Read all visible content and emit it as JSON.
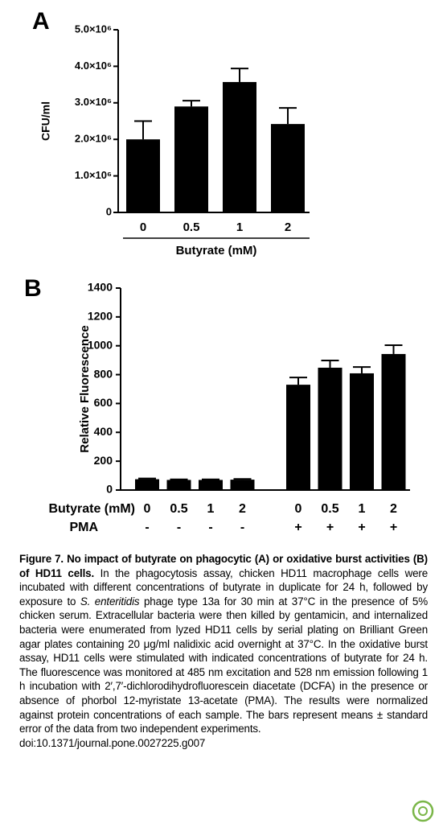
{
  "chart_data": [
    {
      "type": "bar",
      "panel": "A",
      "ylabel": "CFU/ml",
      "xlabel": "Butyrate (mM)",
      "categories": [
        "0",
        "0.5",
        "1",
        "2"
      ],
      "values": [
        2000000,
        2900000,
        3570000,
        2420000
      ],
      "errors": [
        500000,
        160000,
        370000,
        440000
      ],
      "color": "#000000",
      "ylim": [
        0,
        5000000
      ],
      "yticks": [
        0,
        {
          "value": 1000000,
          "label": "1.0×10⁶"
        },
        {
          "value": 2000000,
          "label": "2.0×10⁶"
        },
        {
          "value": 3000000,
          "label": "3.0×10⁶"
        },
        {
          "value": 4000000,
          "label": "4.0×10⁶"
        },
        {
          "value": 5000000,
          "label": "5.0×10⁶"
        }
      ]
    },
    {
      "type": "bar",
      "panel": "B",
      "ylabel": "Relative Fluorescence",
      "row_labels": [
        "Butyrate (mM)",
        "PMA"
      ],
      "categories": [
        "0",
        "0.5",
        "1",
        "2",
        "0",
        "0.5",
        "1",
        "2"
      ],
      "pma": [
        "-",
        "-",
        "-",
        "-",
        "+",
        "+",
        "+",
        "+"
      ],
      "values": [
        75,
        70,
        70,
        72,
        730,
        848,
        809,
        943
      ],
      "errors": [
        5,
        4,
        4,
        5,
        50,
        50,
        44,
        61
      ],
      "color": "#000000",
      "ylim": [
        0,
        1400
      ],
      "yticks": [
        0,
        200,
        400,
        600,
        800,
        1000,
        1200,
        1400
      ]
    }
  ],
  "caption": {
    "title": "Figure 7. No impact of butyrate on phagocytic (A) or oxidative burst activities (B) of HD11 cells.",
    "body": [
      "In the phagocytosis assay, chicken HD11 macrophage cells were incubated with different concentrations of butyrate in duplicate for 24 h, followed by exposure to ",
      "S. enteritidis",
      " phage type 13a for 30 min at 37°C in the presence of 5% chicken serum. Extracellular bacteria were then killed by gentamicin, and internalized bacteria were enumerated from lyzed HD11 cells by serial plating on Brilliant Green agar plates containing 20 μg/ml nalidixic acid overnight at 37°C. In the oxidative burst assay, HD11 cells were stimulated with indicated concentrations of butyrate for 24 h. The fluorescence was monitored at 485 nm excitation and 528 nm emission following 1 h incubation with 2′,7′-dichlorodihydrofluorescein diacetate (DCFA) in the presence or absence of phorbol 12-myristate 13-acetate (PMA). The results were normalized against protein concentrations of each sample. The bars represent means ± standard error of the data from two independent experiments."
    ],
    "doi": "doi:10.1371/journal.pone.0027225.g007"
  }
}
